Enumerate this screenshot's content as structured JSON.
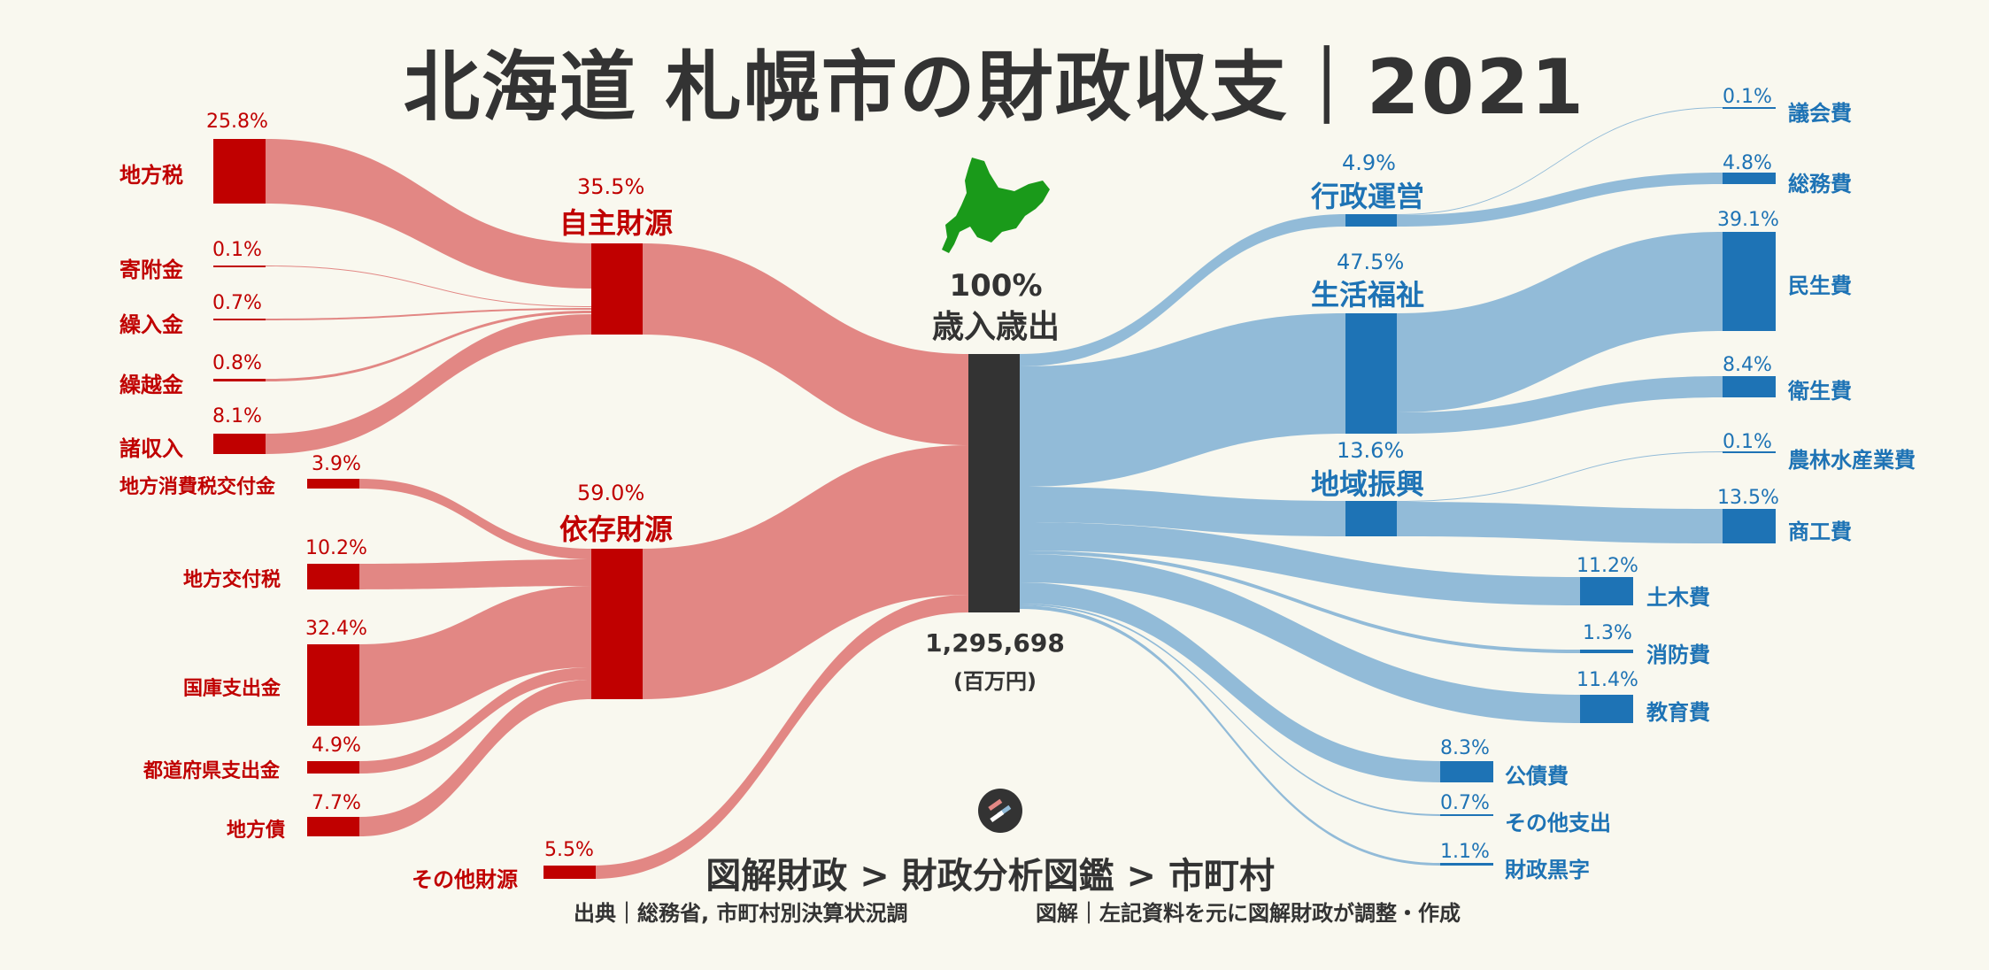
{
  "title": "北海道 札幌市の財政収支｜2021",
  "center": {
    "pct": "100%",
    "label": "歳入歳出",
    "total": "1,295,698",
    "unit": "(百万円)"
  },
  "revenue_groups": [
    {
      "label": "自主財源",
      "pct": "35.5%"
    },
    {
      "label": "依存財源",
      "pct": "59.0%"
    }
  ],
  "revenue_sources": [
    {
      "label": "地方税",
      "pct": "25.8%"
    },
    {
      "label": "寄附金",
      "pct": "0.1%"
    },
    {
      "label": "繰入金",
      "pct": "0.7%"
    },
    {
      "label": "繰越金",
      "pct": "0.8%"
    },
    {
      "label": "諸収入",
      "pct": "8.1%"
    },
    {
      "label": "地方消費税交付金",
      "pct": "3.9%"
    },
    {
      "label": "地方交付税",
      "pct": "10.2%"
    },
    {
      "label": "国庫支出金",
      "pct": "32.4%"
    },
    {
      "label": "都道府県支出金",
      "pct": "4.9%"
    },
    {
      "label": "地方債",
      "pct": "7.7%"
    },
    {
      "label": "その他財源",
      "pct": "5.5%"
    }
  ],
  "expense_groups": [
    {
      "label": "行政運営",
      "pct": "4.9%"
    },
    {
      "label": "生活福祉",
      "pct": "47.5%"
    },
    {
      "label": "地域振興",
      "pct": "13.6%"
    }
  ],
  "expense_items": [
    {
      "label": "議会費",
      "pct": "0.1%"
    },
    {
      "label": "総務費",
      "pct": "4.8%"
    },
    {
      "label": "民生費",
      "pct": "39.1%"
    },
    {
      "label": "衛生費",
      "pct": "8.4%"
    },
    {
      "label": "農林水産業費",
      "pct": "0.1%"
    },
    {
      "label": "商工費",
      "pct": "13.5%"
    },
    {
      "label": "土木費",
      "pct": "11.2%"
    },
    {
      "label": "消防費",
      "pct": "1.3%"
    },
    {
      "label": "教育費",
      "pct": "11.4%"
    },
    {
      "label": "公債費",
      "pct": "8.3%"
    },
    {
      "label": "その他支出",
      "pct": "0.7%"
    },
    {
      "label": "財政黒字",
      "pct": "1.1%"
    }
  ],
  "footer": {
    "brand": "図解財政 > 財政分析図鑑 > 市町村",
    "source": "出典｜総務省, 市町村別決算状況調",
    "note": "図解｜左記資料を元に図解財政が調整・作成"
  },
  "colors": {
    "revenue": "#c00000",
    "revenue_flow": "#e28784",
    "expense": "#1e73b5",
    "expense_flow": "#92bbd8",
    "center": "#333333",
    "map": "#1a9a1a"
  }
}
